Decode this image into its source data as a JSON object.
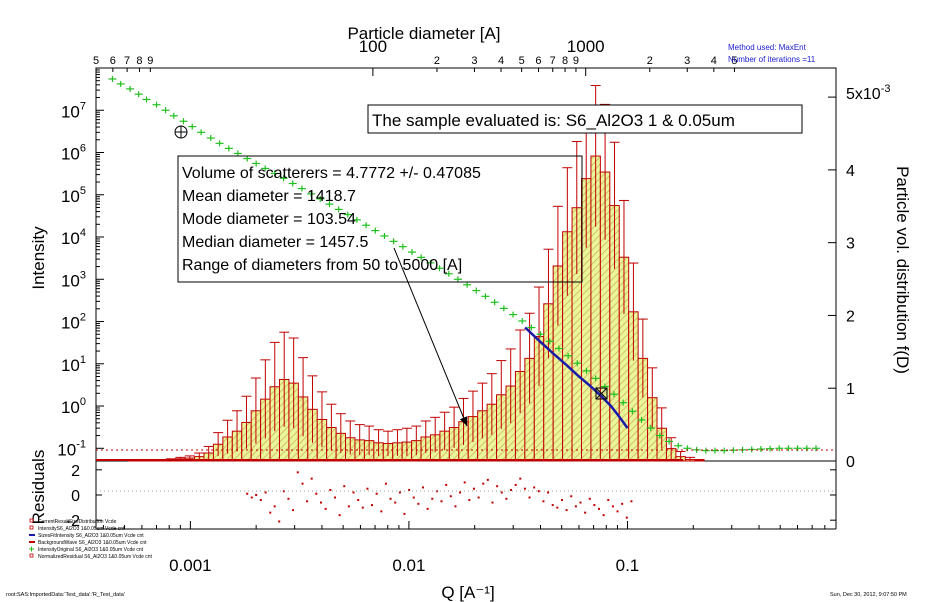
{
  "colors": {
    "bar_fill": "#e7f79a",
    "bar_hatch": "#d6a35a",
    "bar_outline": "#c00000",
    "error_bar": "#c00000",
    "intensity_data": "#1fbf1f",
    "model_line": "#1a1aa8",
    "residual_points": "#c00000",
    "method_text": "#1a1ad0",
    "zero_line": "#c00000",
    "arrow": "#000000"
  },
  "annotations": {
    "method": "Method used: MaxEnt",
    "iterations": "Number of iterations =11",
    "sample": "The sample evaluated is:  S6_Al2O3 1 & 0.05um",
    "stats": [
      "Volume of scatterers = 4.7772  +/- 0.47085",
      "Mean diameter = 1418.7",
      "Mode diameter = 103.54",
      "Median diameter = 1457.5",
      "Range of diameters from 50  to 5000  [A]"
    ],
    "footer_left": "root:SAS:ImportedData:'Test_data':'R_Test_data'",
    "footer_right": "Sun, Dec 30, 2012, 9:07:50 PM"
  },
  "legend": [
    {
      "label": "CurrentResultSizeDistribution  Vcde",
      "icon": "square-icon"
    },
    {
      "label": "IntensityS6_Al2O3 1&0.05um Vcde  cnt",
      "icon": "square-icon"
    },
    {
      "label": "SizesFitIntensity S6_Al2O3 1&0.05um Vcde cnt",
      "icon": "line-icon"
    },
    {
      "label": "BackgroundWave S6_Al2O3 1&0.05um Vcde cnt",
      "icon": "line-icon"
    },
    {
      "label": "IntensityOriginal S6_Al2O3 1&0.05um Vcde cnt",
      "icon": "plus-icon"
    },
    {
      "label": "NormalizedResidual S6_Al2O3 1&0.05um Vcde cnt",
      "icon": "square-icon"
    }
  ],
  "chart_data": {
    "type": "bar",
    "title": "",
    "xlabel": "Q [A⁻¹]",
    "x_scale": "log",
    "xlim": [
      0.00037,
      0.9
    ],
    "x_ticks": [
      {
        "value": 0.001,
        "label": "0.001"
      },
      {
        "value": 0.01,
        "label": "0.01"
      },
      {
        "value": 0.1,
        "label": "0.1"
      }
    ],
    "top_axis": {
      "label": "Particle diameter [A]",
      "scale": "log",
      "range_display": [
        5,
        15000
      ],
      "major_ticks": [
        {
          "value": 100,
          "label": "100"
        },
        {
          "value": 1000,
          "label": "1000"
        }
      ],
      "minor_labels": [
        {
          "value": 5,
          "label": "5"
        },
        {
          "value": 6,
          "label": "6"
        },
        {
          "value": 7,
          "label": "7"
        },
        {
          "value": 8,
          "label": "8"
        },
        {
          "value": 9,
          "label": "9"
        },
        {
          "value": 200,
          "label": "2"
        },
        {
          "value": 300,
          "label": "3"
        },
        {
          "value": 400,
          "label": "4"
        },
        {
          "value": 500,
          "label": "5"
        },
        {
          "value": 600,
          "label": "6"
        },
        {
          "value": 700,
          "label": "7"
        },
        {
          "value": 800,
          "label": "8"
        },
        {
          "value": 900,
          "label": "9"
        },
        {
          "value": 2000,
          "label": "2"
        },
        {
          "value": 3000,
          "label": "3"
        },
        {
          "value": 4000,
          "label": "4"
        },
        {
          "value": 5000,
          "label": "5"
        }
      ]
    },
    "left_axis": {
      "label": "Intensity",
      "scale": "log",
      "ylim": [
        0.05,
        100000000
      ],
      "ticks": [
        {
          "value": 0.1,
          "label": "10",
          "exp": "-1"
        },
        {
          "value": 1,
          "label": "10",
          "exp": "0"
        },
        {
          "value": 10,
          "label": "10",
          "exp": "1"
        },
        {
          "value": 100,
          "label": "10",
          "exp": "2"
        },
        {
          "value": 1000,
          "label": "10",
          "exp": "3"
        },
        {
          "value": 10000,
          "label": "10",
          "exp": "4"
        },
        {
          "value": 100000,
          "label": "10",
          "exp": "5"
        },
        {
          "value": 1000000,
          "label": "10",
          "exp": "6"
        },
        {
          "value": 10000000,
          "label": "10",
          "exp": "7"
        }
      ]
    },
    "right_axis": {
      "label": "Particle vol. distribution f(D)",
      "scale": "linear",
      "ylim": [
        0,
        0.0054
      ],
      "multiplier": "x10",
      "multiplier_exp": "-3",
      "ticks": [
        {
          "value": 0,
          "label": "0"
        },
        {
          "value": 0.001,
          "label": "1"
        },
        {
          "value": 0.002,
          "label": "2"
        },
        {
          "value": 0.003,
          "label": "3"
        },
        {
          "value": 0.004,
          "label": "4"
        },
        {
          "value": 0.005,
          "label": "5"
        }
      ]
    },
    "residual_axis": {
      "label": "Residuals",
      "ylim": [
        -2.7,
        2.7
      ],
      "ticks": [
        {
          "value": 2,
          "label": "2"
        },
        {
          "value": 0,
          "label": "0"
        },
        {
          "value": -2,
          "label": "-2"
        }
      ]
    },
    "distribution": {
      "name": "Particle vol. distribution f(D)",
      "q": [
        0.000548,
        0.000605,
        0.000668,
        0.000738,
        0.000815,
        0.0009,
        0.000994,
        0.001098,
        0.001213,
        0.00134,
        0.00148,
        0.001635,
        0.001806,
        0.001995,
        0.002203,
        0.002433,
        0.002688,
        0.002969,
        0.003279,
        0.003622,
        0.004,
        0.004419,
        0.00488,
        0.00539,
        0.005954,
        0.006577,
        0.007264,
        0.008024,
        0.008863,
        0.009789,
        0.010813,
        0.011943,
        0.013192,
        0.014571,
        0.016095,
        0.017778,
        0.019636,
        0.021689,
        0.023957,
        0.026462,
        0.029228,
        0.032284,
        0.03566,
        0.039388,
        0.043507,
        0.048055,
        0.05308,
        0.05863,
        0.06476,
        0.071531,
        0.07901,
        0.08727,
        0.096396,
        0.106474,
        0.117607,
        0.129904,
        0.143486,
        0.158489,
        0.17506,
        0.193364,
        0.213582,
        0.235913,
        0.26058,
        0.287825
      ],
      "values": [
        1e-05,
        1e-05,
        1e-05,
        1e-05,
        2e-05,
        3e-05,
        4e-05,
        6e-05,
        0.00011,
        0.00023,
        0.00033,
        0.00041,
        0.00053,
        0.00069,
        0.00085,
        0.00102,
        0.00112,
        0.00107,
        0.00088,
        0.00071,
        0.00057,
        0.00046,
        0.00038,
        0.00032,
        0.00029,
        0.00028,
        0.00025,
        0.00024,
        0.00025,
        0.00026,
        0.00028,
        0.00033,
        0.00036,
        0.00041,
        0.00046,
        0.00054,
        0.00061,
        0.00069,
        0.00078,
        0.00091,
        0.00103,
        0.00123,
        0.00141,
        0.00171,
        0.00216,
        0.00268,
        0.00315,
        0.00348,
        0.00388,
        0.00419,
        0.00397,
        0.00351,
        0.0028,
        0.00205,
        0.00141,
        0.00087,
        0.00045,
        0.00017,
        6e-05,
        2e-05,
        1e-05,
        0,
        0,
        0
      ],
      "errors": [
        1e-05,
        1e-05,
        1e-05,
        1e-05,
        1e-05,
        2e-05,
        3e-05,
        5e-05,
        9e-05,
        0.00016,
        0.00023,
        0.00028,
        0.00036,
        0.00045,
        0.00054,
        0.00061,
        0.00065,
        0.00062,
        0.00054,
        0.00046,
        0.00038,
        0.00032,
        0.00027,
        0.00023,
        0.00021,
        0.0002,
        0.00018,
        0.00017,
        0.00018,
        0.00019,
        0.0002,
        0.00022,
        0.00024,
        0.00026,
        0.00028,
        0.00032,
        0.00035,
        0.00038,
        0.00042,
        0.00047,
        0.00051,
        0.00057,
        0.00062,
        0.00068,
        0.00075,
        0.00082,
        0.00088,
        0.00091,
        0.00095,
        0.00097,
        0.00093,
        0.00087,
        0.00078,
        0.00067,
        0.00054,
        0.00041,
        0.00028,
        0.00015,
        7e-05,
        3e-05,
        1e-05,
        0,
        0,
        0
      ]
    },
    "intensity_data": {
      "name": "IntensityOriginal S6_Al2O3 1&0.05um Vcde cnt",
      "x": [
        0.00044,
        0.00048,
        0.00053,
        0.00058,
        0.00063,
        0.0007,
        0.00077,
        0.00084,
        0.00093,
        0.00102,
        0.00112,
        0.00124,
        0.00136,
        0.0015,
        0.00165,
        0.00182,
        0.002,
        0.0022,
        0.00243,
        0.00267,
        0.00294,
        0.00324,
        0.00357,
        0.00393,
        0.00433,
        0.00477,
        0.00525,
        0.00578,
        0.00637,
        0.00702,
        0.00773,
        0.00851,
        0.00938,
        0.01033,
        0.01138,
        0.01254,
        0.01381,
        0.01522,
        0.01676,
        0.01846,
        0.02034,
        0.0224,
        0.02468,
        0.02719,
        0.02995,
        0.03299,
        0.03634,
        0.04003,
        0.0441,
        0.04858,
        0.05351,
        0.05894,
        0.06493,
        0.07153,
        0.07879,
        0.08679,
        0.0956,
        0.10532,
        0.11601,
        0.12779,
        0.14077,
        0.15507,
        0.17082,
        0.18817,
        0.20728,
        0.22833,
        0.25152,
        0.27707,
        0.30521,
        0.33621,
        0.37036,
        0.40797,
        0.44941,
        0.49506,
        0.54534,
        0.60073,
        0.66175,
        0.72896
      ],
      "y": [
        55000000,
        42000000,
        32000000,
        24000000,
        18000000,
        13500000,
        10000000,
        7400000,
        5500000,
        4100000,
        3000000,
        2200000,
        1650000,
        1250000,
        950000,
        720000,
        550000,
        420000,
        320000,
        245000,
        185000,
        140000,
        105000,
        80000,
        60000,
        45000,
        34000,
        25500,
        19000,
        14200,
        10600,
        7900,
        5900,
        4400,
        3300,
        2450,
        1820,
        1350,
        1000,
        740,
        540,
        395,
        285,
        205,
        146,
        103,
        72,
        50,
        34,
        23,
        15.5,
        10.3,
        6.8,
        4.5,
        2.9,
        1.9,
        1.2,
        0.75,
        0.47,
        0.3,
        0.2,
        0.145,
        0.115,
        0.1,
        0.092,
        0.088,
        0.088,
        0.088,
        0.09,
        0.092,
        0.094,
        0.096,
        0.098,
        0.1,
        0.1,
        0.1,
        0.1,
        0.1
      ]
    },
    "model_fit": {
      "name": "SizesFitIntensity S6_Al2O3 1&0.05um Vcde cnt",
      "x": [
        0.034,
        0.04,
        0.046,
        0.053,
        0.06,
        0.068,
        0.076,
        0.084,
        0.092,
        0.1
      ],
      "y": [
        72,
        33,
        17,
        9,
        5,
        2.9,
        1.7,
        1.0,
        0.55,
        0.3
      ]
    },
    "residuals": {
      "name": "NormalizedResidual S6_Al2O3 1&0.05um Vcde cnt",
      "x": [
        0.00182,
        0.00191,
        0.002,
        0.0021,
        0.00221,
        0.00232,
        0.00243,
        0.00255,
        0.00268,
        0.00281,
        0.00295,
        0.0031,
        0.00326,
        0.00342,
        0.00359,
        0.00377,
        0.00396,
        0.00416,
        0.00437,
        0.00459,
        0.00482,
        0.00506,
        0.00531,
        0.00558,
        0.00586,
        0.00615,
        0.00646,
        0.00678,
        0.00712,
        0.00748,
        0.00785,
        0.00824,
        0.00866,
        0.00909,
        0.00954,
        0.01002,
        0.01052,
        0.01105,
        0.0116,
        0.01218,
        0.01279,
        0.01343,
        0.0141,
        0.01481,
        0.01555,
        0.01633,
        0.01714,
        0.018,
        0.0189,
        0.01985,
        0.02084,
        0.02188,
        0.02297,
        0.02412,
        0.02533,
        0.02659,
        0.02792,
        0.02932,
        0.03079,
        0.03233,
        0.03394,
        0.03564,
        0.03742,
        0.03929,
        0.04126,
        0.04332,
        0.04549,
        0.04776,
        0.05015,
        0.05266,
        0.05529,
        0.05806,
        0.06096,
        0.06401,
        0.06721,
        0.07057,
        0.0741,
        0.07781,
        0.0817,
        0.08578,
        0.09007,
        0.09458,
        0.09931,
        0.10427
      ],
      "y": [
        0.1,
        -0.2,
        0.0,
        -0.4,
        0.2,
        -1.4,
        -0.9,
        -2.1,
        0.3,
        -0.3,
        -1.2,
        1.8,
        0.9,
        -0.5,
        1.3,
        0.1,
        -0.6,
        -1.1,
        0.4,
        -0.2,
        -1.6,
        0.7,
        -0.9,
        0.2,
        -0.4,
        -1.0,
        0.5,
        -0.8,
        0.1,
        -1.3,
        0.9,
        -0.3,
        -0.6,
        0.2,
        -1.5,
        0.4,
        -0.2,
        -0.7,
        0.6,
        -1.1,
        -0.3,
        0.3,
        -0.5,
        0.8,
        -0.1,
        -0.9,
        0.2,
        1.0,
        -0.4,
        0.5,
        -0.2,
        0.9,
        1.2,
        -0.6,
        0.7,
        0.2,
        -0.3,
        0.4,
        0.8,
        1.3,
        0.5,
        -0.2,
        0.6,
        0.3,
        -0.5,
        0.2,
        -0.8,
        -1.0,
        -0.4,
        -1.2,
        -0.1,
        -0.9,
        -0.6,
        -1.4,
        -0.3,
        -0.8,
        -1.1,
        -1.6,
        -0.4,
        -0.9,
        -1.3,
        -0.7,
        -1.8,
        -0.5
      ]
    }
  }
}
